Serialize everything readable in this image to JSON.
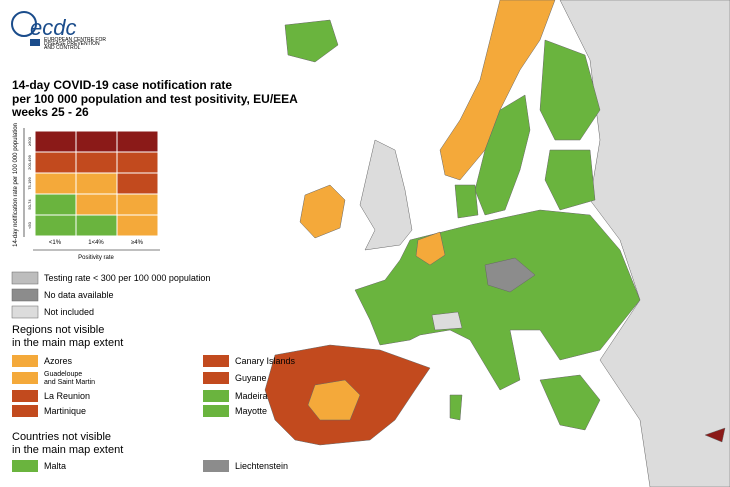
{
  "header": {
    "logo": "ecdc",
    "logo_subtitle": [
      "EUROPEAN CENTRE FOR",
      "DISEASE PREVENTION",
      "AND CONTROL"
    ]
  },
  "title": [
    "14-day COVID-19 case notification rate",
    "per 100 000 population and test positivity, EU/EEA",
    "weeks 25 - 26"
  ],
  "matrix": {
    "y_axis_label": "14-day notification rate per 100 000 population",
    "row_labels": [
      "≥500",
      "200-499",
      "75-199",
      "50-74",
      "<50"
    ],
    "x_labels": [
      "<1%",
      "1<4%",
      "≥4%"
    ],
    "x_axis_label": "Positivity rate"
  },
  "legend": {
    "status": [
      "Testing rate < 300 per 100 000 population",
      "No data available",
      "Not included"
    ],
    "regions_heading": [
      "Regions not visible",
      "in the main map extent"
    ],
    "regions": [
      [
        "Azores"
      ],
      [
        "Guadeloupe",
        "and Saint Martin"
      ],
      [
        "La Reunion"
      ],
      [
        "Martinique"
      ],
      [
        "Canary Islands"
      ],
      [
        "Guyane"
      ],
      [
        "Madeira"
      ],
      [
        "Mayotte"
      ]
    ],
    "countries_heading": [
      "Countries not visible",
      "in the main map extent"
    ],
    "countries": [
      "Malta",
      "Liechtenstein"
    ]
  }
}
